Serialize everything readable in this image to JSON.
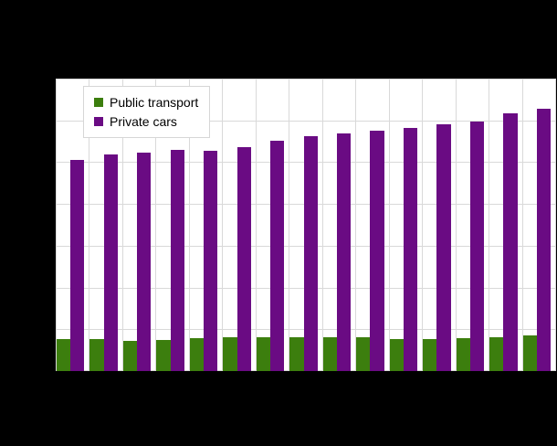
{
  "figure": {
    "background_color": "#000000",
    "plot_background_color": "#ffffff",
    "gridline_color": "#d9d9d9",
    "legend_border_color": "#d6d6d6",
    "text_color": "#000000"
  },
  "chart_data": {
    "type": "bar",
    "n_groups": 15,
    "x_tick_labels_visible": false,
    "y_tick_labels_visible": false,
    "grid": true,
    "y_gridline_divisions": 7,
    "ylim": [
      0,
      70
    ],
    "legend_position": "top-left",
    "series": [
      {
        "name": "Public transport",
        "color": "#3c7e0e",
        "values": [
          7.7,
          7.7,
          7.3,
          7.5,
          7.9,
          8.2,
          8.0,
          8.2,
          8.2,
          8.1,
          7.7,
          7.7,
          7.9,
          8.1,
          8.5
        ]
      },
      {
        "name": "Private cars",
        "color": "#6a0b83",
        "values": [
          50.5,
          51.8,
          52.2,
          53.0,
          52.8,
          53.6,
          55.2,
          56.2,
          56.9,
          57.5,
          58.3,
          59.1,
          59.8,
          61.8,
          62.8
        ]
      }
    ]
  }
}
